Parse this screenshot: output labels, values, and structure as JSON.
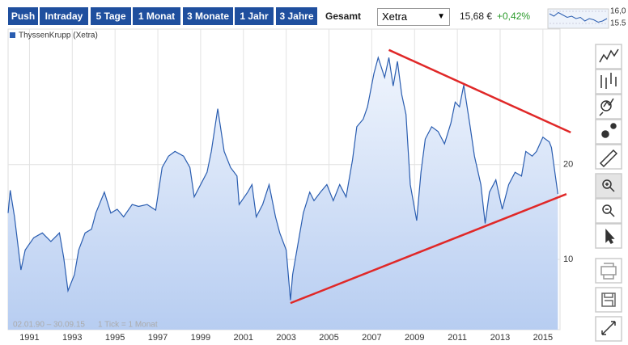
{
  "toolbar": {
    "buttons": [
      "Push",
      "Intraday",
      "5 Tage",
      "1 Monat",
      "3 Monate",
      "1 Jahr",
      "3 Jahre",
      "Gesamt"
    ],
    "exchange": "Xetra",
    "price": "15,68 €",
    "change": "+0,42%"
  },
  "sparkline": {
    "values": [
      15.9,
      15.8,
      15.95,
      15.85,
      15.75,
      15.8,
      15.7,
      15.75,
      15.6,
      15.7,
      15.65,
      15.55,
      15.6,
      15.7
    ],
    "ylim": [
      15.3,
      16.1
    ],
    "yticks": [
      {
        "value": 16,
        "label": "16,0"
      },
      {
        "value": 15.5,
        "label": "15.5"
      }
    ],
    "color": "#2a5db0"
  },
  "chart_data": {
    "type": "area",
    "x": [
      1990.0,
      1990.1,
      1990.3,
      1990.6,
      1990.8,
      1991.2,
      1991.6,
      1992.0,
      1992.4,
      1992.6,
      1992.8,
      1993.1,
      1993.3,
      1993.6,
      1993.9,
      1994.1,
      1994.5,
      1994.8,
      1995.1,
      1995.4,
      1995.8,
      1996.1,
      1996.5,
      1996.9,
      1997.2,
      1997.5,
      1997.8,
      1998.2,
      1998.5,
      1998.7,
      1999.0,
      1999.3,
      1999.5,
      1999.8,
      2000.1,
      2000.4,
      2000.7,
      2000.8,
      2001.2,
      2001.4,
      2001.6,
      2001.9,
      2002.2,
      2002.5,
      2002.7,
      2003.0,
      2003.2,
      2003.3,
      2003.5,
      2003.8,
      2004.1,
      2004.3,
      2004.6,
      2004.9,
      2005.2,
      2005.5,
      2005.8,
      2006.1,
      2006.3,
      2006.6,
      2006.8,
      2007.1,
      2007.3,
      2007.6,
      2007.8,
      2008.0,
      2008.2,
      2008.4,
      2008.6,
      2008.8,
      2009.1,
      2009.3,
      2009.5,
      2009.8,
      2010.1,
      2010.4,
      2010.7,
      2010.9,
      2011.1,
      2011.3,
      2011.6,
      2011.8,
      2012.1,
      2012.3,
      2012.5,
      2012.8,
      2013.1,
      2013.4,
      2013.7,
      2014.0,
      2014.2,
      2014.5,
      2014.7,
      2015.0,
      2015.3,
      2015.4,
      2015.7
    ],
    "series": [
      {
        "name": "ThyssenKrupp (Xetra)",
        "color": "#2a5db0",
        "values": [
          14.9,
          17.3,
          14.5,
          8.9,
          11.0,
          12.3,
          12.8,
          11.9,
          12.8,
          10.2,
          6.7,
          8.4,
          11.0,
          12.8,
          13.2,
          14.9,
          17.1,
          14.9,
          15.3,
          14.5,
          15.8,
          15.6,
          15.8,
          15.2,
          19.7,
          20.9,
          21.4,
          20.9,
          19.7,
          16.6,
          17.9,
          19.2,
          21.4,
          25.9,
          21.4,
          19.7,
          18.8,
          15.8,
          17.1,
          17.9,
          14.5,
          15.8,
          17.9,
          14.5,
          12.8,
          11.0,
          5.7,
          8.4,
          11.0,
          14.9,
          17.1,
          16.2,
          17.1,
          17.9,
          16.2,
          17.9,
          16.6,
          20.5,
          24.0,
          24.8,
          26.1,
          29.6,
          31.3,
          29.2,
          31.3,
          28.3,
          30.9,
          27.4,
          25.3,
          17.9,
          14.1,
          19.2,
          22.7,
          24.0,
          23.5,
          22.2,
          24.4,
          26.6,
          26.1,
          28.4,
          24.0,
          20.9,
          17.9,
          13.8,
          17.1,
          18.4,
          15.3,
          17.9,
          19.2,
          18.8,
          21.4,
          20.9,
          21.4,
          22.9,
          22.4,
          21.8,
          16.9
        ]
      }
    ],
    "xlim": [
      1990,
      2015.8
    ],
    "xticks": [
      1991,
      1993,
      1995,
      1997,
      1999,
      2001,
      2003,
      2005,
      2007,
      2009,
      2011,
      2013,
      2015
    ],
    "ylim": [
      2.6,
      34.3
    ],
    "yticks": [
      10,
      20
    ],
    "grid": true,
    "trendlines": [
      {
        "color": "#e02828",
        "x": [
          2007.8,
          2016.3
        ],
        "y": [
          32.1,
          23.4
        ]
      },
      {
        "color": "#e02828",
        "x": [
          2003.2,
          2016.1
        ],
        "y": [
          5.4,
          16.9
        ]
      }
    ],
    "range_note": "02.01.90 – 30.09.15",
    "tick_note": "1 Tick = 1 Monat"
  }
}
